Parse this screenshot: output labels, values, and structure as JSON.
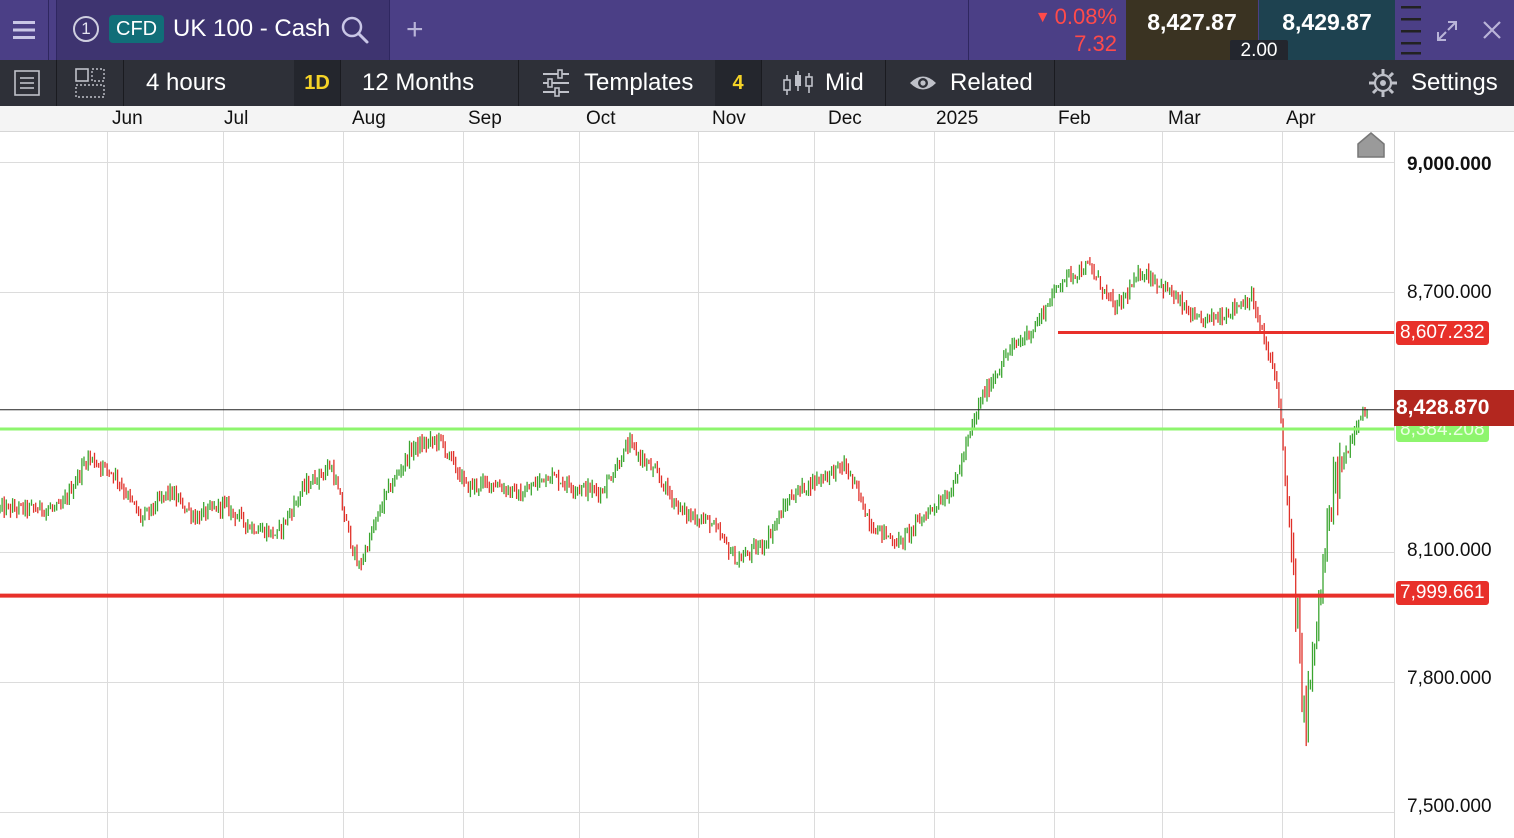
{
  "header": {
    "tab_number": "1",
    "instrument_type": "CFD",
    "instrument_name": "UK 100 - Cash",
    "change_percent": "0.08%",
    "change_points": "7.32",
    "bid": "8,427.87",
    "ask": "8,429.87",
    "spread": "2.00",
    "icons": [
      "menu-icon",
      "search-icon",
      "add-tab-icon",
      "drag-handle-icon",
      "expand-icon",
      "close-icon"
    ]
  },
  "toolbar": {
    "interval": "4 hours",
    "interval_badge": "1D",
    "range": "12 Months",
    "templates_label": "Templates",
    "indicator_count": "4",
    "price_type": "Mid",
    "related_label": "Related",
    "settings_label": "Settings"
  },
  "colors": {
    "header_bg": "#4b3f86",
    "toolbar_bg": "#2e3038",
    "up_candle": "#3aa52f",
    "down_candle": "#e0312a",
    "support_resistance": "#e8302a",
    "green_level": "#8ef56e",
    "current_price": "#b3271f"
  },
  "chart_data": {
    "type": "candlestick",
    "x_axis_labels": [
      "Jun",
      "Jul",
      "Aug",
      "Sep",
      "Oct",
      "Nov",
      "Dec",
      "2025",
      "Feb",
      "Mar",
      "Apr"
    ],
    "y_ticks": [
      "9,000.000",
      "8,700.000",
      "8,100.000",
      "7,800.000",
      "7,500.000"
    ],
    "ylim": [
      7440,
      9070
    ],
    "grid": true,
    "current_price": "8,428.870",
    "levels": [
      {
        "value": "8,607.232",
        "color": "red"
      },
      {
        "value": "8,384.208",
        "color": "green"
      },
      {
        "value": "7,999.661",
        "color": "red"
      }
    ],
    "series": [
      {
        "x": [
          "2024-05-20",
          "2024-05-27",
          "2024-06-03",
          "2024-06-10",
          "2024-06-17",
          "2024-06-24",
          "2024-07-01",
          "2024-07-08",
          "2024-07-15",
          "2024-07-22",
          "2024-07-29",
          "2024-08-05",
          "2024-08-12",
          "2024-08-19",
          "2024-08-26",
          "2024-09-02",
          "2024-09-09",
          "2024-09-16",
          "2024-09-23",
          "2024-09-30",
          "2024-10-07",
          "2024-10-14",
          "2024-10-21",
          "2024-10-28",
          "2024-11-04",
          "2024-11-11",
          "2024-11-18",
          "2024-11-25",
          "2024-12-02",
          "2024-12-09",
          "2024-12-16",
          "2024-12-23",
          "2024-12-30",
          "2025-01-06",
          "2025-01-13",
          "2025-01-20",
          "2025-01-27",
          "2025-02-03",
          "2025-02-10",
          "2025-02-17",
          "2025-02-24",
          "2025-03-03",
          "2025-03-10",
          "2025-03-17",
          "2025-03-24",
          "2025-03-31",
          "2025-04-07",
          "2025-04-14",
          "2025-04-21"
        ],
        "close": [
          8200,
          8320,
          8280,
          8175,
          8240,
          8180,
          8210,
          8160,
          8140,
          8250,
          8300,
          8060,
          8230,
          8340,
          8360,
          8250,
          8260,
          8230,
          8280,
          8250,
          8240,
          8350,
          8280,
          8190,
          8170,
          8080,
          8120,
          8230,
          8270,
          8300,
          8160,
          8120,
          8190,
          8250,
          8450,
          8560,
          8620,
          8730,
          8760,
          8660,
          8750,
          8700,
          8630,
          8650,
          8690,
          8480,
          7700,
          8230,
          8420
        ]
      }
    ]
  }
}
